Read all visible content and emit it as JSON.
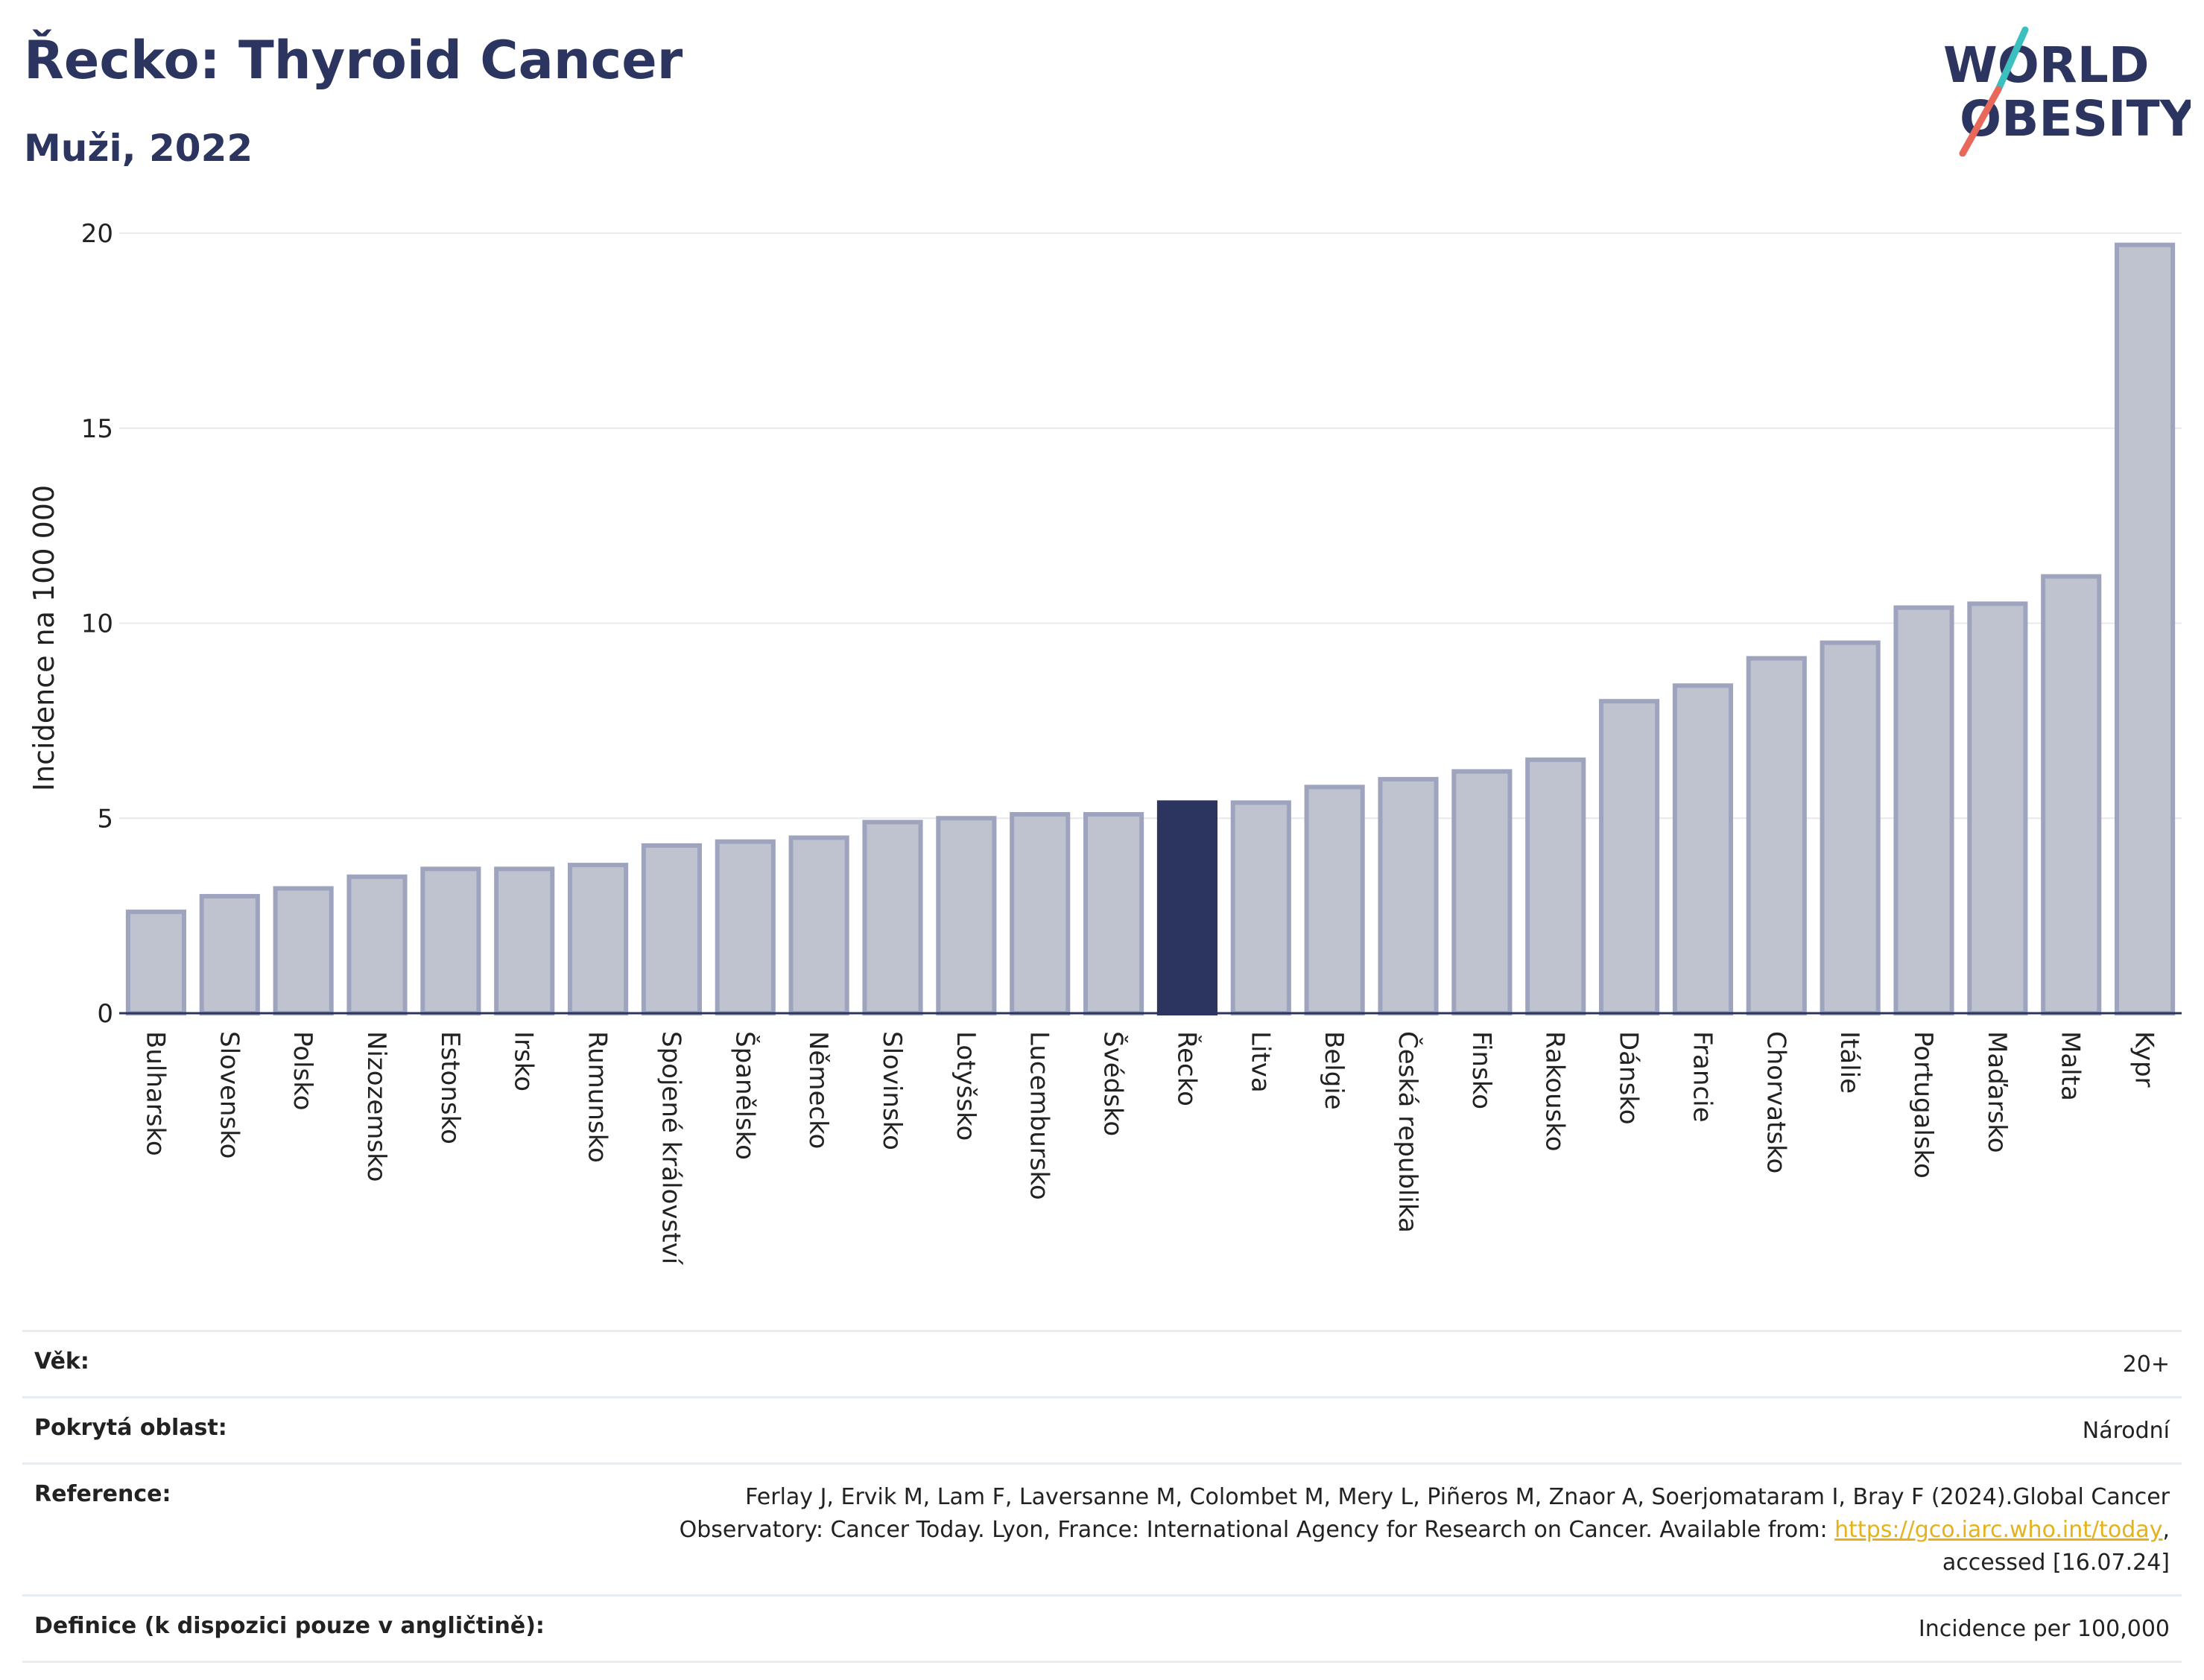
{
  "header": {
    "title": "Řecko: Thyroid Cancer",
    "subtitle": "Muži, 2022"
  },
  "logo": {
    "line1": "WORLD",
    "line2": "OBESITY",
    "colors": {
      "text": "#2b3560",
      "slash_top": "#3bbfbf",
      "slash_bottom": "#e8685a"
    }
  },
  "chart_data": {
    "type": "bar",
    "ylabel": "Incidence na 100 000",
    "ylim": [
      0,
      20
    ],
    "yticks": [
      0,
      5,
      10,
      15,
      20
    ],
    "grid": true,
    "highlight": "Řecko",
    "colors": {
      "bar": "#bfc3d0",
      "bar_border": "#9ea4bd",
      "highlight": "#2b3560",
      "grid": "#e6e9ee",
      "axis": "#2b3560"
    },
    "categories": [
      "Bulharsko",
      "Slovensko",
      "Polsko",
      "Nizozemsko",
      "Estonsko",
      "Irsko",
      "Rumunsko",
      "Spojené království",
      "Španělsko",
      "Německo",
      "Slovinsko",
      "Lotyšsko",
      "Lucembursko",
      "Švédsko",
      "Řecko",
      "Litva",
      "Belgie",
      "Česká republika",
      "Finsko",
      "Rakousko",
      "Dánsko",
      "Francie",
      "Chorvatsko",
      "Itálie",
      "Portugalsko",
      "Maďarsko",
      "Malta",
      "Kypr"
    ],
    "values": [
      2.6,
      3.0,
      3.2,
      3.5,
      3.7,
      3.7,
      3.8,
      4.3,
      4.4,
      4.5,
      4.9,
      5.0,
      5.1,
      5.1,
      5.4,
      5.4,
      5.8,
      6.0,
      6.2,
      6.5,
      8.0,
      8.4,
      9.1,
      9.5,
      10.4,
      10.5,
      11.2,
      19.7
    ]
  },
  "info": {
    "age_label": "Věk:",
    "age_value": "20+",
    "area_label": "Pokrytá oblast:",
    "area_value": "Národní",
    "reference_label": "Reference:",
    "reference_text_1": "Ferlay J, Ervik M, Lam F, Laversanne M, Colombet M, Mery L, Piñeros M, Znaor A, Soerjomataram I, Bray F (2024).Global Cancer",
    "reference_text_2": "Observatory: Cancer Today. Lyon, France: International Agency for Research on Cancer. Available from: ",
    "reference_link": "https://gco.iarc.who.int/today",
    "reference_text_3": ",",
    "reference_text_4": "accessed [16.07.24]",
    "definition_label": "Definice (k dispozici pouze v angličtině):",
    "definition_value": "Incidence per 100,000"
  }
}
